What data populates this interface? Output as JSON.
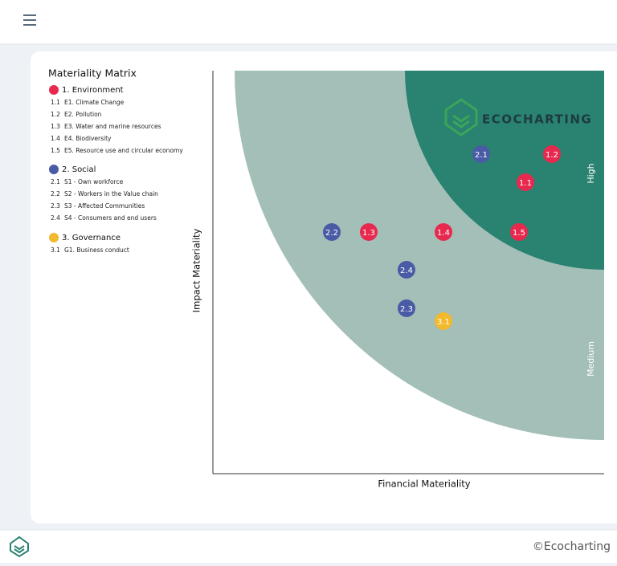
{
  "legend": {
    "title": "Materiality Matrix",
    "groups": [
      {
        "name": "1. Environment",
        "color": "#e8294f",
        "items": [
          {
            "id": "1.1",
            "label": "E1. Climate Change"
          },
          {
            "id": "1.2",
            "label": "E2. Pollution"
          },
          {
            "id": "1.3",
            "label": "E3. Water and marine resources"
          },
          {
            "id": "1.4",
            "label": "E4. Biodiversity"
          },
          {
            "id": "1.5",
            "label": "E5. Resource use and circular economy"
          }
        ]
      },
      {
        "name": "2. Social",
        "color": "#4a5ba6",
        "items": [
          {
            "id": "2.1",
            "label": "S1 - Own workforce"
          },
          {
            "id": "2.2",
            "label": "S2 - Workers in the Value chain"
          },
          {
            "id": "2.3",
            "label": "S3 - Affected Communities"
          },
          {
            "id": "2.4",
            "label": "S4 - Consumers and end users"
          }
        ]
      },
      {
        "name": "3. Governance",
        "color": "#f2b92d",
        "items": [
          {
            "id": "3.1",
            "label": "G1. Business conduct"
          }
        ]
      }
    ]
  },
  "matrix": {
    "x_label": "Financial Materiality",
    "y_label": "Impact Materiality",
    "zones": [
      {
        "name": "High",
        "color": "#2a8270"
      },
      {
        "name": "Medium",
        "color": "#a3bfb8"
      }
    ],
    "watermark": "ECOCHARTING",
    "points": [
      {
        "label": "2.1",
        "group": 1
      },
      {
        "label": "1.2",
        "group": 0
      },
      {
        "label": "1.1",
        "group": 0
      },
      {
        "label": "2.2",
        "group": 1
      },
      {
        "label": "1.3",
        "group": 0
      },
      {
        "label": "1.4",
        "group": 0
      },
      {
        "label": "1.5",
        "group": 0
      },
      {
        "label": "2.4",
        "group": 1
      },
      {
        "label": "2.3",
        "group": 1
      },
      {
        "label": "3.1",
        "group": 2
      }
    ]
  },
  "footer": {
    "copyright": "©Ecocharting"
  }
}
